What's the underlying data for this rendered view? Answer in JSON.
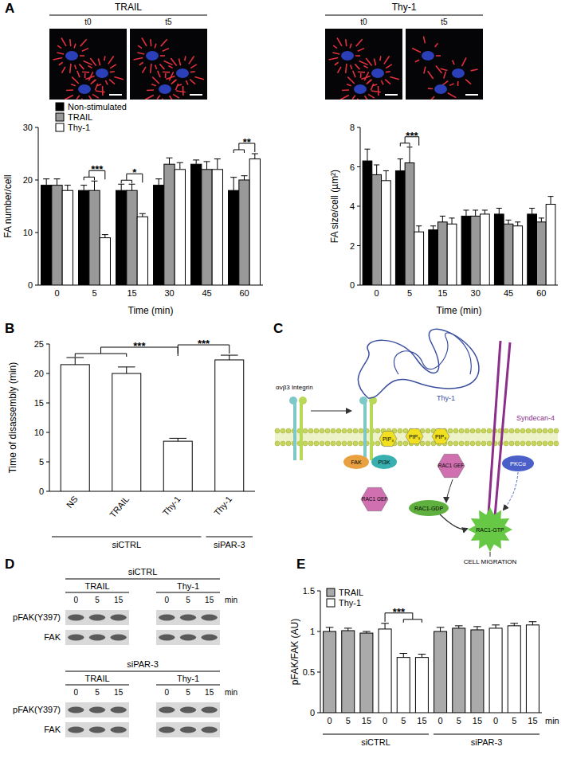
{
  "panels": [
    "A",
    "B",
    "C",
    "D",
    "E"
  ],
  "micrographs": [
    {
      "title": "TRAIL",
      "frames": [
        "t0",
        "t5"
      ]
    },
    {
      "title": "Thy-1",
      "frames": [
        "t0",
        "t5"
      ]
    }
  ],
  "chart_data": [
    {
      "type": "bar",
      "xlabel": "Time (min)",
      "ylabel": "FA number/cell",
      "categories": [
        "0",
        "5",
        "15",
        "30",
        "45",
        "60"
      ],
      "series": [
        {
          "name": "Non-stimulated",
          "color": "#000000",
          "values": [
            19,
            18,
            18,
            19,
            23,
            18
          ],
          "errors": [
            1.2,
            1,
            1.2,
            1.2,
            0.8,
            2.5
          ]
        },
        {
          "name": "TRAIL",
          "color": "#999999",
          "values": [
            19,
            18,
            18,
            23,
            22,
            20
          ],
          "errors": [
            1.2,
            1.8,
            1.2,
            1.2,
            1.5,
            0.8
          ]
        },
        {
          "name": "Thy-1",
          "color": "#ffffff",
          "values": [
            18,
            9,
            13,
            22,
            22,
            24
          ],
          "errors": [
            1,
            0.6,
            0.6,
            1.3,
            2,
            1
          ]
        }
      ],
      "ylim": [
        0,
        30
      ],
      "yticks": [
        0,
        10,
        20,
        30
      ],
      "legend": "upper left",
      "annotations": [
        {
          "text": "***",
          "category": 1,
          "from": [
            0,
            1
          ],
          "to": [
            2
          ]
        },
        {
          "text": "*",
          "category": 2,
          "from": [
            0,
            1
          ],
          "to": [
            2
          ]
        },
        {
          "text": "**",
          "category": 5,
          "from": [
            0,
            1
          ],
          "to": [
            2
          ]
        }
      ]
    },
    {
      "type": "bar",
      "xlabel": "Time (min)",
      "ylabel": "FA size/cell (µm²)",
      "categories": [
        "0",
        "5",
        "15",
        "30",
        "45",
        "60"
      ],
      "series": [
        {
          "name": "Non-stimulated",
          "color": "#000000",
          "values": [
            6.3,
            5.8,
            2.8,
            3.5,
            3.6,
            3.6
          ],
          "errors": [
            0.6,
            0.6,
            0.2,
            0.3,
            0.3,
            0.3
          ]
        },
        {
          "name": "TRAIL",
          "color": "#999999",
          "values": [
            5.6,
            6.2,
            3.2,
            3.5,
            3.1,
            3.2
          ],
          "errors": [
            0.5,
            0.8,
            0.3,
            0.3,
            0.2,
            0.2
          ]
        },
        {
          "name": "Thy-1",
          "color": "#ffffff",
          "values": [
            5.3,
            2.7,
            3.1,
            3.6,
            3.0,
            4.1
          ],
          "errors": [
            0.5,
            0.3,
            0.3,
            0.2,
            0.2,
            0.4
          ]
        }
      ],
      "ylim": [
        0,
        8
      ],
      "yticks": [
        0,
        2,
        4,
        6,
        8
      ],
      "annotations": [
        {
          "text": "***",
          "category": 1,
          "from": [
            0,
            1
          ],
          "to": [
            2
          ]
        }
      ]
    },
    {
      "type": "bar",
      "ylabel": "Time of disassembly (min)",
      "categories": [
        "NS",
        "TRAIL",
        "Thy-1",
        "Thy-1"
      ],
      "values": [
        21.5,
        20,
        8.5,
        22.3
      ],
      "errors": [
        1.2,
        1.1,
        0.5,
        0.8
      ],
      "color": "#ffffff",
      "ylim": [
        0,
        25
      ],
      "yticks": [
        0,
        5,
        10,
        15,
        20,
        25
      ],
      "groups": [
        {
          "label": "siCTRL",
          "start": 0,
          "end": 2
        },
        {
          "label": "siPAR-3",
          "start": 3,
          "end": 3
        }
      ],
      "annotations": [
        {
          "text": "***",
          "from": [
            0,
            1
          ],
          "to": [
            2
          ]
        },
        {
          "text": "***",
          "from": [
            2
          ],
          "to": [
            3
          ]
        }
      ]
    },
    {
      "type": "bar",
      "xlabel": "min",
      "ylabel": "pFAK/FAK (AU)",
      "categories": [
        "0",
        "5",
        "15",
        "0",
        "5",
        "15",
        "0",
        "5",
        "15",
        "0",
        "5",
        "15"
      ],
      "series": [
        {
          "name": "TRAIL",
          "color": "#aaaaaa",
          "values": [
            1.0,
            1.01,
            0.98,
            null,
            null,
            null,
            1.0,
            1.04,
            1.02,
            null,
            null,
            null
          ],
          "errors": [
            0.05,
            0.03,
            0.02,
            null,
            null,
            null,
            0.05,
            0.03,
            0.04,
            null,
            null,
            null
          ]
        },
        {
          "name": "Thy-1",
          "color": "#ffffff",
          "values": [
            null,
            null,
            null,
            1.03,
            0.68,
            0.68,
            null,
            null,
            null,
            1.04,
            1.07,
            1.08
          ],
          "errors": [
            null,
            null,
            null,
            0.07,
            0.05,
            0.04,
            null,
            null,
            null,
            0.04,
            0.03,
            0.04
          ]
        }
      ],
      "ylim": [
        0,
        1.5
      ],
      "yticks": [
        0,
        0.5,
        1,
        1.5
      ],
      "legend": "upper left",
      "groups": [
        {
          "label": "siCTRL",
          "start": 0,
          "end": 5
        },
        {
          "label": "siPAR-3",
          "start": 6,
          "end": 11
        }
      ],
      "annotations": [
        {
          "text": "***",
          "from": [
            3
          ],
          "to": [
            4,
            5
          ]
        }
      ]
    }
  ],
  "diagram": {
    "integrin": "αvβ3 Integrin",
    "thy1": "Thy-1",
    "syndecan": "Syndecan-4",
    "fak": "FAK",
    "pi3k": "PI3K",
    "pip3": "PIP₃",
    "rac1_gef": "RAC1 GEF",
    "pkc": "PKCα",
    "rac1_gdp": "RAC1-GDP",
    "rac1_gtp": "RAC1-GTP",
    "outcome": "CELL MIGRATION"
  },
  "blots": [
    {
      "title": "siCTRL",
      "treatments": [
        "TRAIL",
        "Thy-1"
      ],
      "lanes": [
        "0",
        "5",
        "15"
      ],
      "unit": "min",
      "rows": [
        "pFAK(Y397)",
        "FAK"
      ]
    },
    {
      "title": "siPAR-3",
      "treatments": [
        "TRAIL",
        "Thy-1"
      ],
      "lanes": [
        "0",
        "5",
        "15"
      ],
      "unit": "min",
      "rows": [
        "pFAK(Y397)",
        "FAK"
      ]
    }
  ]
}
